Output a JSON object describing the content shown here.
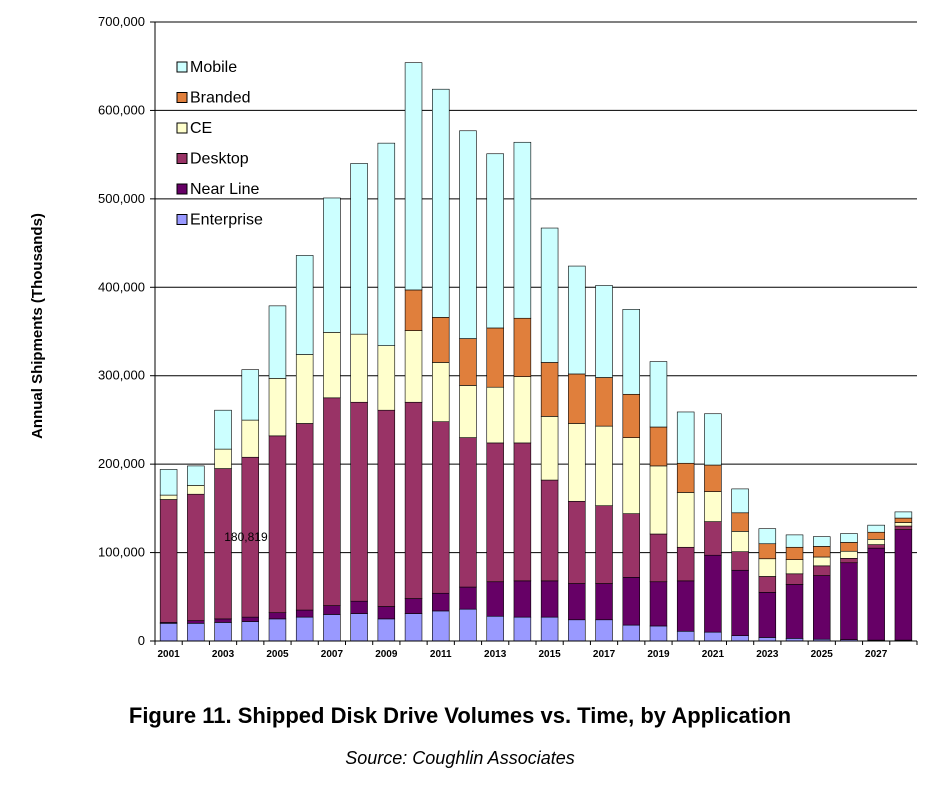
{
  "chart_data": {
    "type": "bar",
    "stacked": true,
    "title": "Figure 11. Shipped Disk Drive Volumes vs. Time, by Application",
    "source": "Source:  Coughlin Associates",
    "xlabel": "",
    "ylabel": "Annual Shipments (Thousands)",
    "ylim": [
      0,
      700000
    ],
    "yticks": [
      0,
      100000,
      200000,
      300000,
      400000,
      500000,
      600000,
      700000
    ],
    "ytick_labels": [
      "0",
      "100,000",
      "200,000",
      "300,000",
      "400,000",
      "500,000",
      "600,000",
      "700,000"
    ],
    "grid": true,
    "legend_position": "top-left",
    "categories": [
      "2001",
      "2002",
      "2003",
      "2004",
      "2005",
      "2006",
      "2007",
      "2008",
      "2009",
      "2010",
      "2011",
      "2012",
      "2013",
      "2014",
      "2015",
      "2016",
      "2017",
      "2018",
      "2019",
      "2020",
      "2021",
      "2022",
      "2023",
      "2024",
      "2025",
      "2026",
      "2027",
      "2028"
    ],
    "xtick_labels": [
      "2001",
      "2003",
      "2005",
      "2007",
      "2009",
      "2011",
      "2013",
      "2015",
      "2017",
      "2019",
      "2021",
      "2023",
      "2025",
      "2027"
    ],
    "series": [
      {
        "name": "Enterprise",
        "color": "#9999ff",
        "values": [
          20000,
          20000,
          21000,
          22000,
          25000,
          27000,
          30000,
          31000,
          25000,
          31000,
          34000,
          36000,
          28000,
          27000,
          27000,
          24000,
          24000,
          18000,
          17000,
          11000,
          10000,
          6000,
          4000,
          3000,
          2000,
          1500,
          1000,
          1000
        ]
      },
      {
        "name": "Near Line",
        "color": "#660066",
        "values": [
          1000,
          3000,
          4000,
          5000,
          7000,
          8000,
          10000,
          14000,
          14000,
          17000,
          20000,
          25000,
          39000,
          41000,
          41000,
          41000,
          41000,
          54000,
          50000,
          57000,
          87000,
          74000,
          51000,
          61000,
          72000,
          87000,
          104000,
          125000
        ]
      },
      {
        "name": "Desktop",
        "color": "#993366",
        "values": [
          139000,
          143000,
          170000,
          180819,
          200000,
          211000,
          235000,
          225000,
          222000,
          222000,
          194000,
          169000,
          157000,
          156000,
          114000,
          93000,
          88000,
          72000,
          54000,
          38000,
          38000,
          21000,
          18000,
          12000,
          11000,
          5000,
          4000,
          4000
        ]
      },
      {
        "name": "CE",
        "color": "#ffffcc",
        "values": [
          5000,
          10000,
          22000,
          42000,
          65000,
          78000,
          74000,
          77000,
          73000,
          81000,
          67000,
          59000,
          63000,
          75000,
          72000,
          88000,
          90000,
          86000,
          77000,
          62000,
          34000,
          23000,
          20000,
          16000,
          10000,
          8000,
          6000,
          4000
        ]
      },
      {
        "name": "Branded",
        "color": "#e07f3c",
        "values": [
          0,
          0,
          0,
          0,
          0,
          0,
          0,
          0,
          0,
          46000,
          51000,
          53000,
          67000,
          66000,
          61000,
          56000,
          55000,
          49000,
          44000,
          33000,
          30000,
          21000,
          17000,
          14000,
          12000,
          10000,
          8000,
          5000
        ]
      },
      {
        "name": "Mobile",
        "color": "#ccffff",
        "values": [
          29000,
          22000,
          44000,
          57000,
          82000,
          112000,
          152000,
          193000,
          229000,
          257000,
          258000,
          235000,
          197000,
          199000,
          152000,
          122000,
          104000,
          96000,
          74000,
          58000,
          58000,
          27000,
          17000,
          14000,
          11000,
          10000,
          8000,
          7000
        ]
      }
    ],
    "legend_order": [
      "Mobile",
      "Branded",
      "CE",
      "Desktop",
      "Near Line",
      "Enterprise"
    ],
    "annotations": [
      {
        "text": "180,819",
        "category": "2004"
      }
    ]
  }
}
